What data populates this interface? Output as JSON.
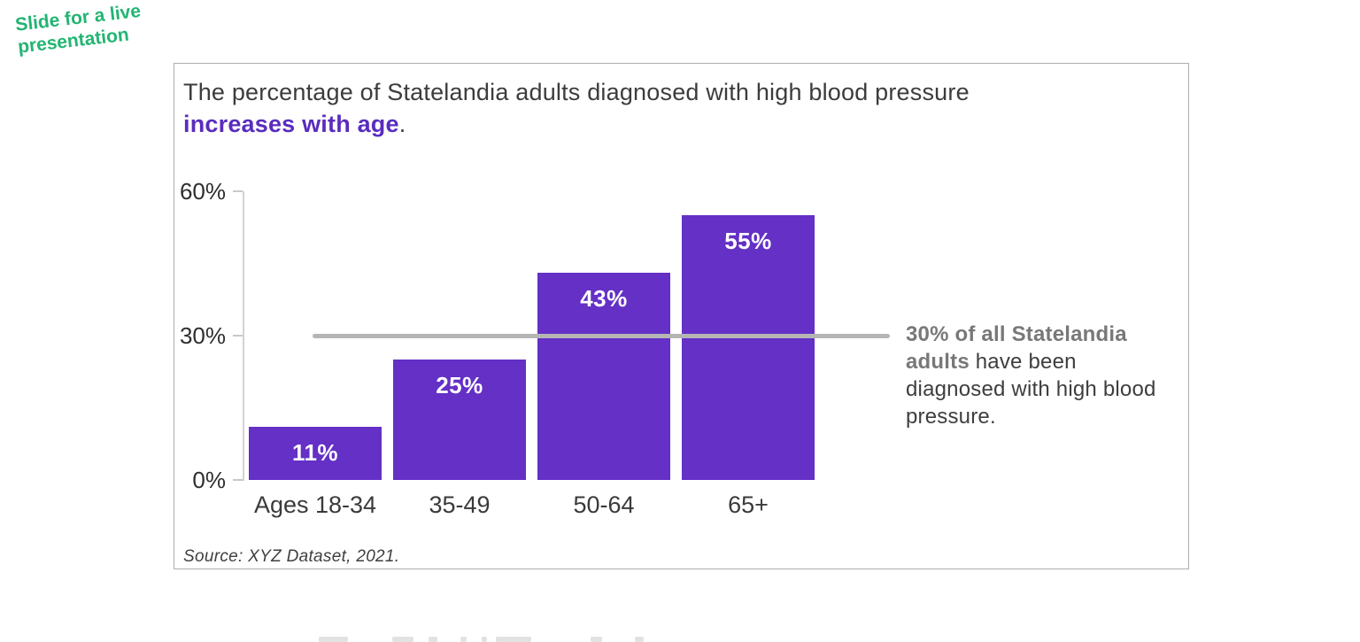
{
  "corner_note": {
    "line1": "Slide for a live",
    "line2": "presentation"
  },
  "card": {
    "title": {
      "line1": "The percentage of Statelandia adults diagnosed with high blood pressure",
      "highlight": "increases with age",
      "suffix": "."
    },
    "source": "Source: XYZ Dataset, 2021."
  },
  "chart_data": {
    "type": "bar",
    "title": "The percentage of Statelandia adults diagnosed with high blood pressure increases with age.",
    "categories": [
      "Ages 18-34",
      "35-49",
      "50-64",
      "65+"
    ],
    "values": [
      11,
      25,
      43,
      55
    ],
    "bar_labels": [
      "11%",
      "25%",
      "43%",
      "55%"
    ],
    "xlabel": "",
    "ylabel": "",
    "ylim": [
      0,
      60
    ],
    "grid": "off",
    "y_tick_labels_top_to_bottom": [
      "60%",
      "30%",
      "0%"
    ],
    "reference_line": {
      "value": 30,
      "annotation_bold": "30% of all Statelandia adults",
      "annotation_rest": " have been diagnosed with high blood pressure."
    }
  },
  "colors": {
    "bar_purple": "#6430c5",
    "title_highlight_purple": "#5a2cbe",
    "note_green": "#22b573",
    "reference_line_gray": "#b5b5b5",
    "annotation_bold_gray": "#787878",
    "text_dark": "#3c3c3c"
  }
}
